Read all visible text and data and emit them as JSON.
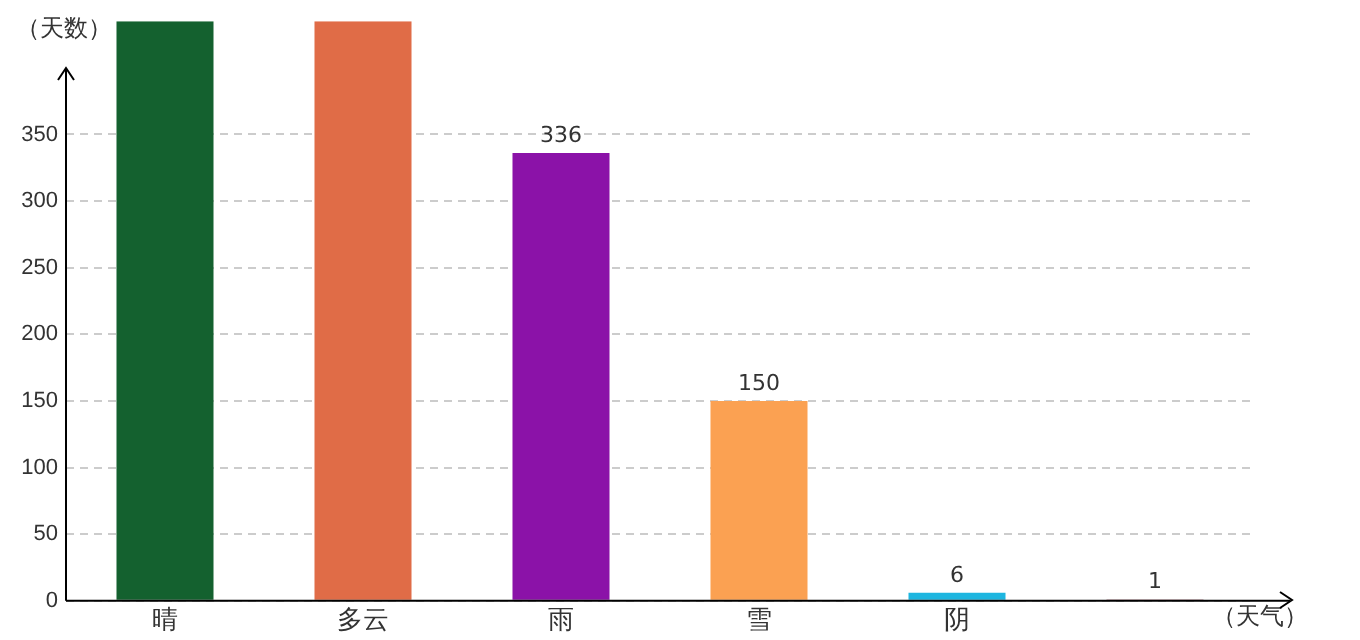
{
  "chart_data": {
    "type": "bar",
    "xlabel": "（天气）",
    "ylabel": "（天数）",
    "categories": [
      "晴",
      "多云",
      "雨",
      "雪",
      "阴",
      null
    ],
    "values": [
      435,
      435,
      336,
      150,
      6,
      1
    ],
    "value_labels": [
      null,
      null,
      "336",
      "150",
      "6",
      "1"
    ],
    "colors": [
      "#14612f",
      "#e06c47",
      "#8b12a8",
      "#fba152",
      "#1eb6e0",
      "#6b1a2a"
    ],
    "ylim": [
      0,
      435
    ],
    "yticks": [
      0,
      50,
      100,
      150,
      200,
      250,
      300,
      350
    ],
    "grid": "y",
    "legend": false
  }
}
